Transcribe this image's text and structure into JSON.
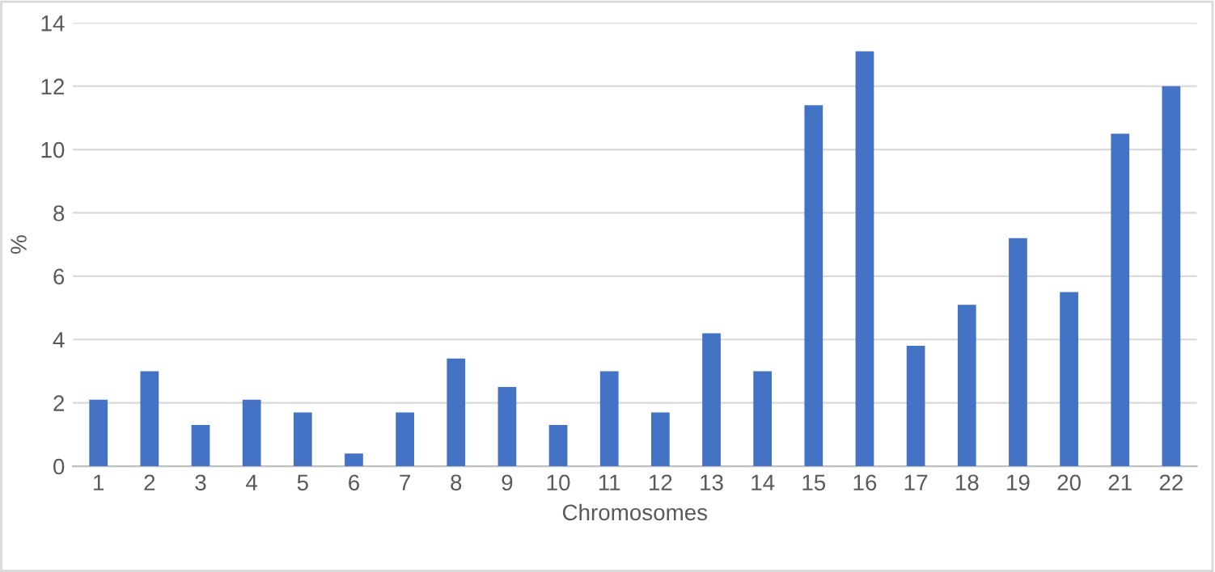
{
  "chart_data": {
    "type": "bar",
    "xlabel": "Chromosomes",
    "ylabel": "%",
    "categories": [
      "1",
      "2",
      "3",
      "4",
      "5",
      "6",
      "7",
      "8",
      "9",
      "10",
      "11",
      "12",
      "13",
      "14",
      "15",
      "16",
      "17",
      "18",
      "19",
      "20",
      "21",
      "22"
    ],
    "values": [
      2.1,
      3.0,
      1.3,
      2.1,
      1.7,
      0.4,
      1.7,
      3.4,
      2.5,
      1.3,
      3.0,
      1.7,
      4.2,
      3.0,
      11.4,
      13.1,
      3.8,
      5.1,
      7.2,
      5.5,
      10.5,
      12.0
    ],
    "color": "#4472c4",
    "ylim": [
      0,
      14
    ],
    "yticks": [
      0,
      2,
      4,
      6,
      8,
      10,
      12,
      14
    ],
    "grid": "y"
  }
}
